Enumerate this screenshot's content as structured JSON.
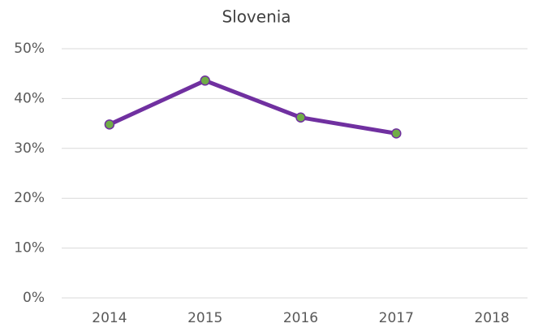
{
  "chart_data": {
    "type": "line",
    "title": "Slovenia",
    "categories": [
      "2014",
      "2015",
      "2016",
      "2017",
      "2018"
    ],
    "values": [
      34.8,
      43.6,
      36.2,
      33.0,
      null
    ],
    "color": "#7030a0",
    "marker_color": "#70ad47",
    "ylim": [
      0,
      50
    ],
    "yticks": [
      {
        "value": 0,
        "label": "0%"
      },
      {
        "value": 10,
        "label": "10%"
      },
      {
        "value": 20,
        "label": "20%"
      },
      {
        "value": 30,
        "label": "30%"
      },
      {
        "value": 40,
        "label": "40%"
      },
      {
        "value": 50,
        "label": "50%"
      }
    ],
    "grid": true
  }
}
